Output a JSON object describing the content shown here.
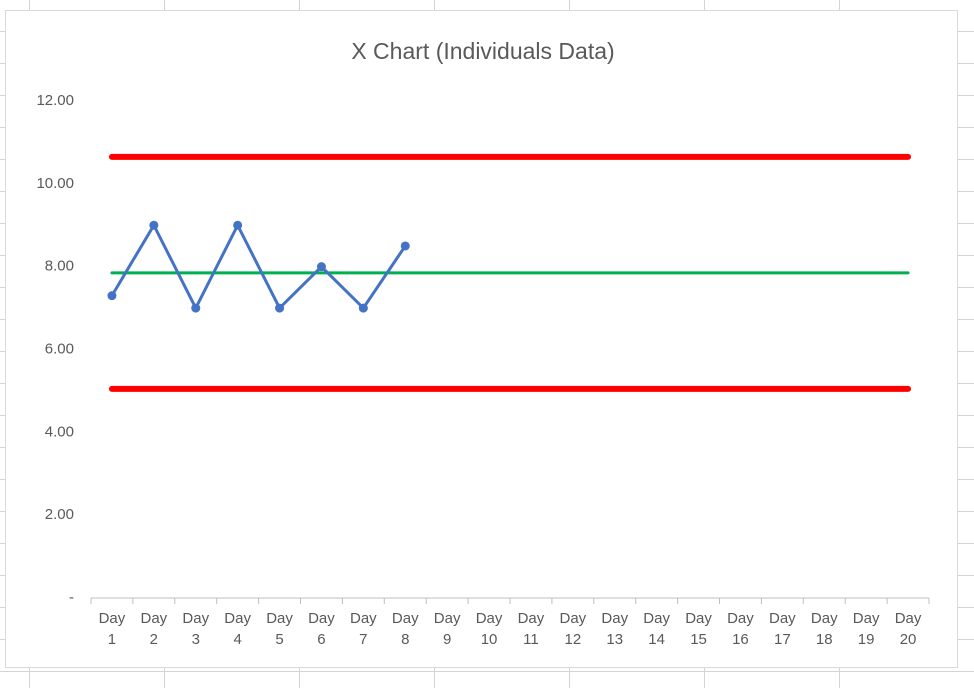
{
  "chart_data": {
    "type": "line",
    "title": "X Chart (Individuals Data)",
    "categories": [
      "Day 1",
      "Day 2",
      "Day 3",
      "Day 4",
      "Day 5",
      "Day 6",
      "Day 7",
      "Day 8",
      "Day 9",
      "Day 10",
      "Day 11",
      "Day 12",
      "Day 13",
      "Day 14",
      "Day 15",
      "Day 16",
      "Day 17",
      "Day 18",
      "Day 19",
      "Day 20"
    ],
    "series": [
      {
        "color": "#4472c4",
        "line_width": 3,
        "marker": true,
        "values": [
          7.3,
          9.0,
          7.0,
          9.0,
          7.0,
          8.0,
          7.0,
          8.5,
          null,
          null,
          null,
          null,
          null,
          null,
          null,
          null,
          null,
          null,
          null,
          null
        ]
      },
      {
        "color": "#ff0000",
        "line_width": 6,
        "marker": false,
        "values": [
          10.65,
          10.65,
          10.65,
          10.65,
          10.65,
          10.65,
          10.65,
          10.65,
          10.65,
          10.65,
          10.65,
          10.65,
          10.65,
          10.65,
          10.65,
          10.65,
          10.65,
          10.65,
          10.65,
          10.65
        ]
      },
      {
        "color": "#00b050",
        "line_width": 3,
        "marker": false,
        "values": [
          7.85,
          7.85,
          7.85,
          7.85,
          7.85,
          7.85,
          7.85,
          7.85,
          7.85,
          7.85,
          7.85,
          7.85,
          7.85,
          7.85,
          7.85,
          7.85,
          7.85,
          7.85,
          7.85,
          7.85
        ]
      },
      {
        "color": "#ff0000",
        "line_width": 6,
        "marker": false,
        "values": [
          5.05,
          5.05,
          5.05,
          5.05,
          5.05,
          5.05,
          5.05,
          5.05,
          5.05,
          5.05,
          5.05,
          5.05,
          5.05,
          5.05,
          5.05,
          5.05,
          5.05,
          5.05,
          5.05,
          5.05
        ]
      }
    ],
    "ylim": [
      0,
      12
    ],
    "yticks": [
      {
        "value": 0,
        "label": "-"
      },
      {
        "value": 2,
        "label": "2.00"
      },
      {
        "value": 4,
        "label": "4.00"
      },
      {
        "value": 6,
        "label": "6.00"
      },
      {
        "value": 8,
        "label": "8.00"
      },
      {
        "value": 10,
        "label": "10.00"
      },
      {
        "value": 12,
        "label": "12.00"
      }
    ],
    "grid": false
  }
}
